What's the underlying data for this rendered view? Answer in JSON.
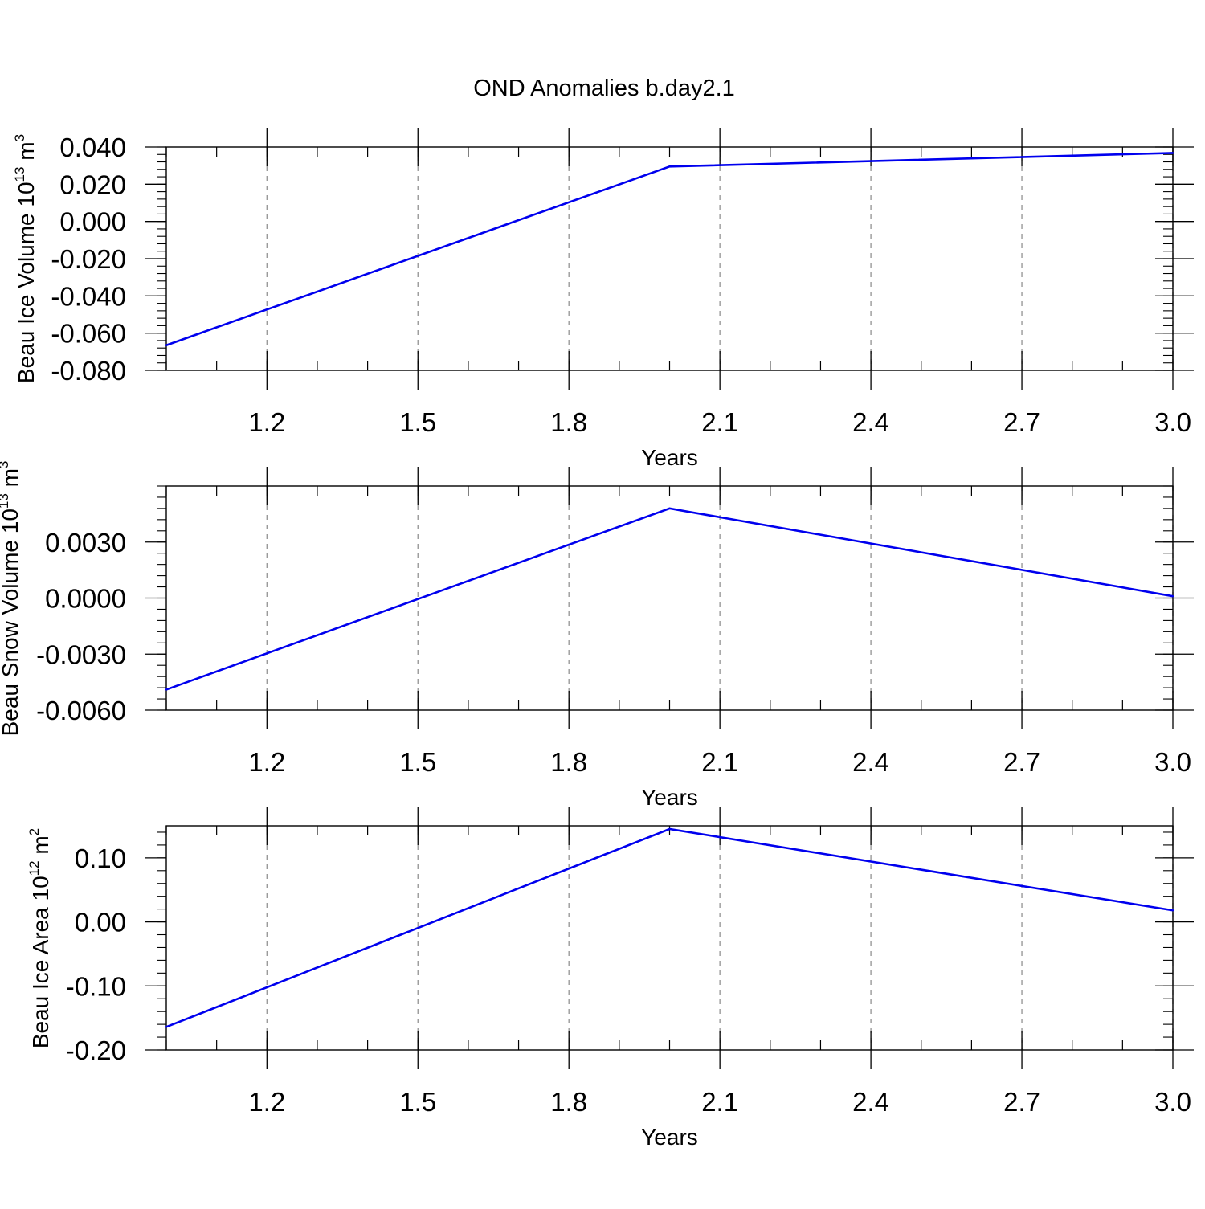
{
  "title": "OND Anomalies b.day2.1",
  "chart_data": [
    {
      "type": "line",
      "ylabel": {
        "prefix": "Beau Ice Volume 10",
        "sup1": "13",
        "mid": " m",
        "sup2": "3"
      },
      "xlabel": "Years",
      "xlim": [
        1.0,
        3.0
      ],
      "xticks": [
        1.2,
        1.5,
        1.8,
        2.1,
        2.4,
        2.7,
        3.0
      ],
      "xtick_labels": [
        "1.2",
        "1.5",
        "1.8",
        "2.1",
        "2.4",
        "2.7",
        "3.0"
      ],
      "ylim": [
        -0.08,
        0.04
      ],
      "yticks": [
        -0.08,
        -0.06,
        -0.04,
        -0.02,
        0.0,
        0.02,
        0.04
      ],
      "ytick_labels": [
        "-0.080",
        "-0.060",
        "-0.040",
        "-0.020",
        "0.000",
        "0.020",
        "0.040"
      ],
      "x": [
        1.0,
        2.0,
        3.0
      ],
      "series": [
        {
          "name": "Beau Ice Volume",
          "color": "#0000ee",
          "values": [
            -0.0665,
            0.0295,
            0.0368
          ]
        }
      ],
      "grid": "vertical-dashed"
    },
    {
      "type": "line",
      "ylabel": {
        "prefix": "Beau Snow Volume 10",
        "sup1": "13",
        "mid": " m",
        "sup2": "3"
      },
      "xlabel": "Years",
      "xlim": [
        1.0,
        3.0
      ],
      "xticks": [
        1.2,
        1.5,
        1.8,
        2.1,
        2.4,
        2.7,
        3.0
      ],
      "xtick_labels": [
        "1.2",
        "1.5",
        "1.8",
        "2.1",
        "2.4",
        "2.7",
        "3.0"
      ],
      "ylim": [
        -0.006,
        0.006
      ],
      "yticks": [
        -0.006,
        -0.003,
        0.0,
        0.003
      ],
      "ytick_labels": [
        "-0.0060",
        "-0.0030",
        "0.0000",
        "0.0030"
      ],
      "x": [
        1.0,
        2.0,
        3.0
      ],
      "series": [
        {
          "name": "Beau Snow Volume",
          "color": "#0000ee",
          "values": [
            -0.0049,
            0.0048,
            0.0001
          ]
        }
      ],
      "grid": "vertical-dashed"
    },
    {
      "type": "line",
      "ylabel": {
        "prefix": "Beau Ice Area 10",
        "sup1": "12",
        "mid": " m",
        "sup2": "2"
      },
      "xlabel": "Years",
      "xlim": [
        1.0,
        3.0
      ],
      "xticks": [
        1.2,
        1.5,
        1.8,
        2.1,
        2.4,
        2.7,
        3.0
      ],
      "xtick_labels": [
        "1.2",
        "1.5",
        "1.8",
        "2.1",
        "2.4",
        "2.7",
        "3.0"
      ],
      "ylim": [
        -0.2,
        0.15
      ],
      "yticks": [
        -0.2,
        -0.1,
        0.0,
        0.1
      ],
      "ytick_labels": [
        "-0.20",
        "-0.10",
        "0.00",
        "0.10"
      ],
      "x": [
        1.0,
        2.0,
        3.0
      ],
      "series": [
        {
          "name": "Beau Ice Area",
          "color": "#0000ee",
          "values": [
            -0.164,
            0.145,
            0.018
          ]
        }
      ],
      "grid": "vertical-dashed"
    }
  ]
}
